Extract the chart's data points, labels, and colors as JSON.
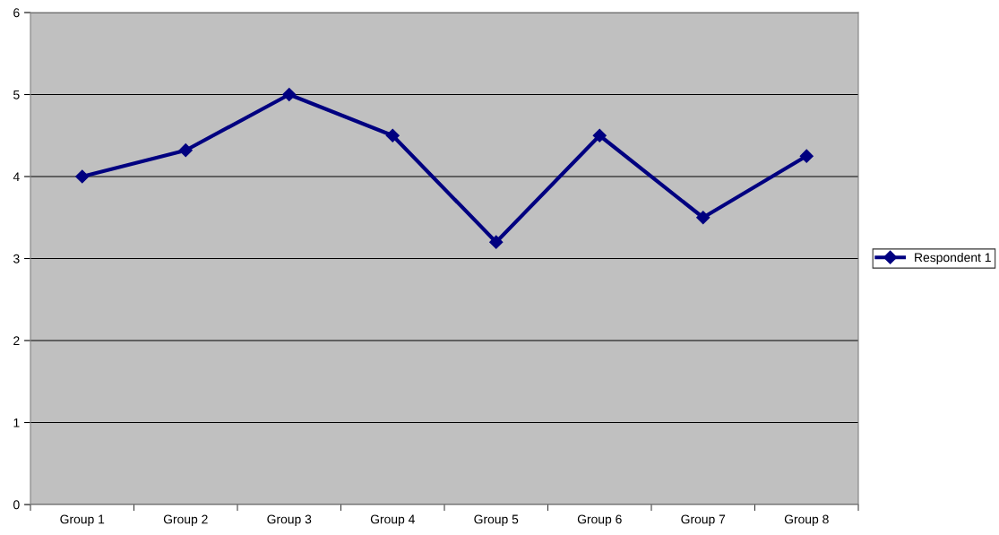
{
  "chart_data": {
    "type": "line",
    "categories": [
      "Group 1",
      "Group 2",
      "Group 3",
      "Group 4",
      "Group 5",
      "Group 6",
      "Group 7",
      "Group 8"
    ],
    "series": [
      {
        "name": "Respondent 1",
        "color": "#000080",
        "values": [
          4,
          4.32,
          5,
          4.5,
          3.2,
          4.5,
          3.5,
          4.25
        ]
      }
    ],
    "ylim": [
      0,
      6
    ],
    "yticks": [
      0,
      1,
      2,
      3,
      4,
      5,
      6
    ],
    "grid": "y",
    "legend": "right",
    "marker": "diamond",
    "line_style": "solid"
  }
}
